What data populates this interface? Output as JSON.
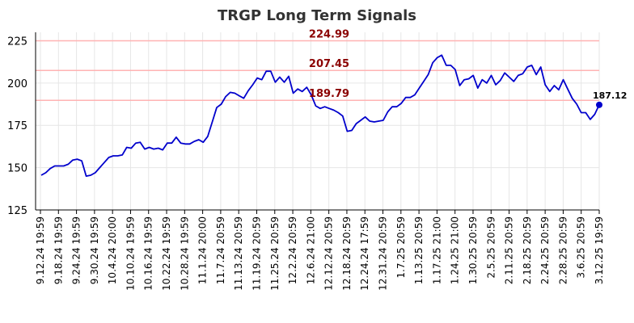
{
  "chart_data": {
    "type": "line",
    "title": "TRGP Long Term Signals",
    "xlabel": "",
    "ylabel": "",
    "ylim": [
      125,
      230
    ],
    "y_ticks": [
      125,
      150,
      175,
      200,
      225
    ],
    "x_tick_labels": [
      "9.12.24 19:59",
      "9.18.24 19:59",
      "9.24.24 19:59",
      "9.30.24 19:59",
      "10.4.24 20:00",
      "10.10.24 19:59",
      "10.16.24 19:59",
      "10.22.24 19:59",
      "10.28.24 19:59",
      "11.1.24 20:00",
      "11.7.24 20:59",
      "11.13.24 20:59",
      "11.19.24 20:59",
      "11.25.24 20:59",
      "12.2.24 20:59",
      "12.6.24 21:00",
      "12.12.24 20:59",
      "12.18.24 20:59",
      "12.24.24 17:59",
      "12.31.24 20:59",
      "1.7.25 20:59",
      "1.13.25 20:59",
      "1.17.25 21:00",
      "1.24.25 21:00",
      "1.30.25 20:59",
      "2.5.25 20:59",
      "2.11.25 20:59",
      "2.18.25 20:59",
      "2.24.25 20:59",
      "2.28.25 20:59",
      "3.6.25 20:59",
      "3.12.25 19:59"
    ],
    "grid": true,
    "levels": [
      {
        "value": 224.99,
        "label": "224.99",
        "color": "#ffb3b3"
      },
      {
        "value": 207.45,
        "label": "207.45",
        "color": "#ffb3b3"
      },
      {
        "value": 189.79,
        "label": "189.79",
        "color": "#ffb3b3"
      }
    ],
    "series": [
      {
        "color": "#0000cc",
        "values": [
          145.5,
          147.0,
          149.5,
          151.0,
          151.0,
          151.0,
          152.0,
          154.5,
          155.0,
          154.0,
          145.0,
          145.5,
          147.0,
          150.0,
          153.0,
          156.0,
          157.0,
          157.0,
          157.5,
          162.0,
          161.5,
          164.5,
          165.0,
          161.0,
          162.0,
          161.0,
          161.5,
          160.5,
          164.5,
          164.5,
          168.0,
          164.5,
          164.0,
          164.0,
          165.5,
          166.5,
          165.0,
          168.5,
          177.0,
          185.5,
          187.5,
          192.0,
          194.5,
          194.0,
          192.5,
          191.0,
          195.5,
          199.0,
          203.0,
          202.0,
          207.0,
          207.0,
          200.5,
          203.5,
          200.5,
          204.0,
          194.0,
          196.5,
          195.0,
          197.5,
          193.0,
          186.5,
          185.0,
          186.0,
          185.0,
          184.0,
          182.5,
          180.5,
          171.5,
          172.0,
          176.0,
          178.0,
          180.0,
          177.5,
          177.0,
          177.5,
          178.0,
          183.0,
          186.0,
          186.0,
          188.0,
          191.5,
          191.5,
          193.0,
          197.0,
          201.0,
          205.0,
          212.0,
          215.0,
          216.5,
          210.5,
          210.5,
          208.0,
          198.5,
          202.0,
          202.5,
          204.5,
          197.0,
          202.0,
          200.0,
          204.5,
          199.0,
          201.5,
          206.0,
          203.5,
          201.0,
          204.5,
          205.5,
          209.5,
          210.5,
          205.0,
          209.5,
          199.0,
          195.0,
          198.5,
          196.0,
          202.0,
          196.5,
          191.0,
          187.5,
          182.5,
          182.5,
          178.5,
          181.5,
          187.12
        ]
      }
    ],
    "last_value": 187.12,
    "last_value_label": "187.12"
  }
}
